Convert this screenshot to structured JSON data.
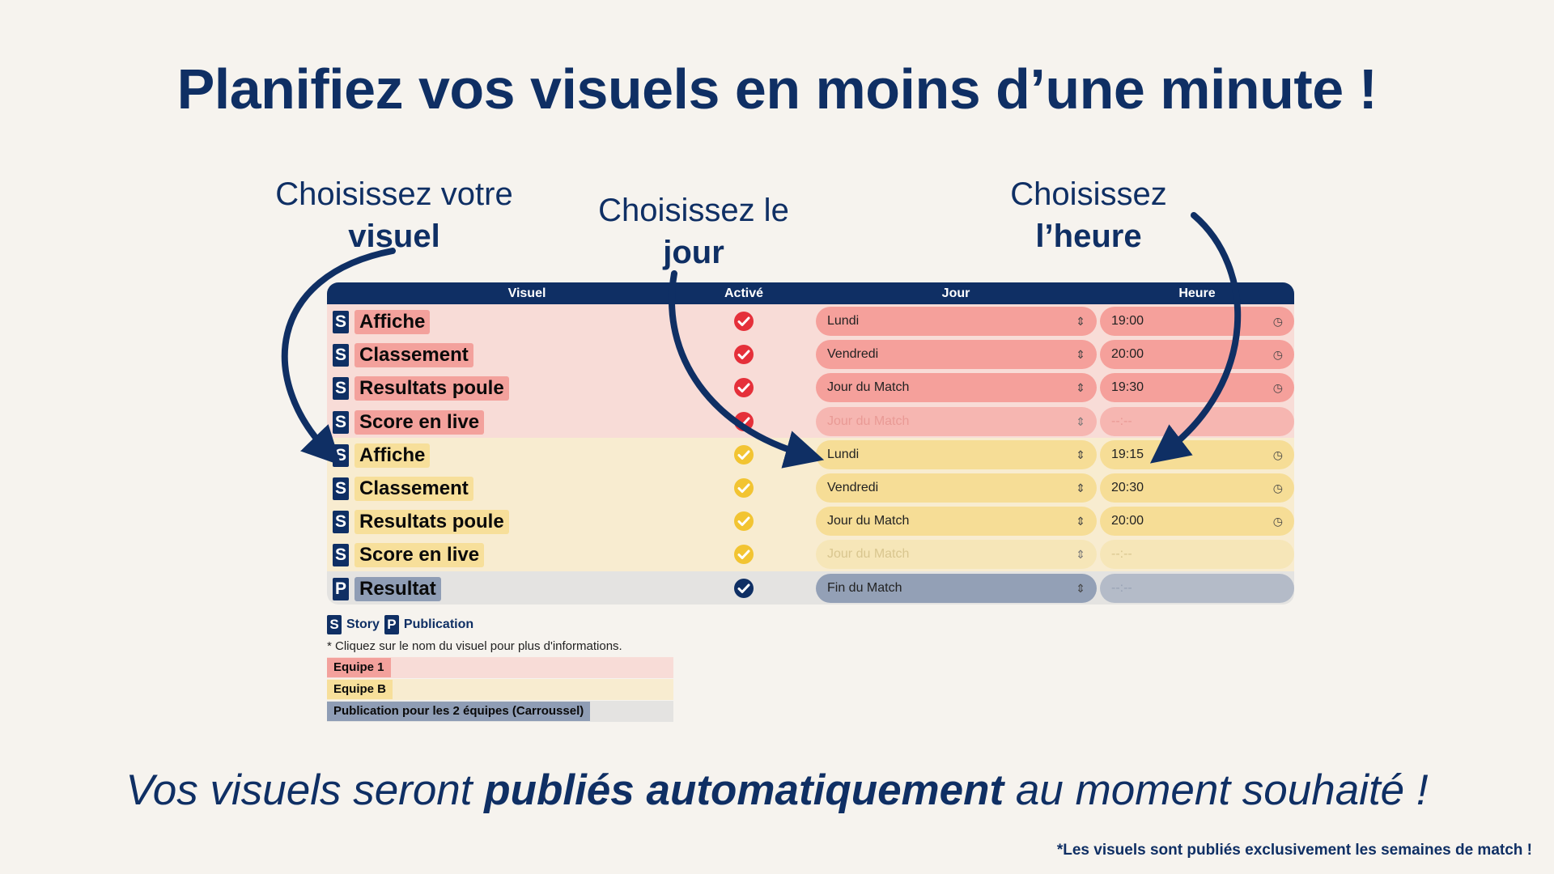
{
  "headline": "Planifiez vos visuels en moins d’une minute !",
  "callouts": [
    {
      "line1": "Choisissez votre",
      "line2": "visuel"
    },
    {
      "line1": "Choisissez le",
      "line2": "jour"
    },
    {
      "line1": "Choisissez",
      "line2": "l’heure"
    }
  ],
  "table": {
    "headers": {
      "visuel": "Visuel",
      "active": "Activé",
      "jour": "Jour",
      "heure": "Heure"
    },
    "rows": [
      {
        "badge": "S",
        "name": "Affiche",
        "day": "Lundi",
        "time": "19:00"
      },
      {
        "badge": "S",
        "name": "Classement",
        "day": "Vendredi",
        "time": "20:00"
      },
      {
        "badge": "S",
        "name": "Resultats poule",
        "day": "Jour du Match",
        "time": "19:30"
      },
      {
        "badge": "S",
        "name": "Score en live",
        "day": "Jour du Match",
        "time": "--:--"
      },
      {
        "badge": "S",
        "name": "Affiche",
        "day": "Lundi",
        "time": "19:15"
      },
      {
        "badge": "S",
        "name": "Classement",
        "day": "Vendredi",
        "time": "20:30"
      },
      {
        "badge": "S",
        "name": "Resultats poule",
        "day": "Jour du Match",
        "time": "20:00"
      },
      {
        "badge": "S",
        "name": "Score en live",
        "day": "Jour du Match",
        "time": "--:--"
      },
      {
        "badge": "P",
        "name": "Resultat",
        "day": "Fin du Match",
        "time": "--:--"
      }
    ]
  },
  "colors": {
    "navy": "#0f2f64",
    "team1_check": "#e5303a",
    "team2_check": "#f2c432",
    "shared_check": "#0f2f64"
  },
  "icons": {
    "check": "check-circle-icon",
    "select": "updown-chevron-icon",
    "time": "clock-icon"
  },
  "legend": {
    "story_badge": "S",
    "story_label": "Story",
    "pub_badge": "P",
    "pub_label": "Publication",
    "note": "* Cliquez sur le nom du visuel pour plus d'informations.",
    "team1": "Equipe 1",
    "team2": "Equipe B",
    "both": "Publication pour les 2 équipes (Carroussel)"
  },
  "tagline": {
    "part1": "Vos visuels seront ",
    "bold": "publiés automatiquement",
    "part2": " au moment souhaité !"
  },
  "footnote": "*Les visuels sont publiés exclusivement les semaines de match !"
}
